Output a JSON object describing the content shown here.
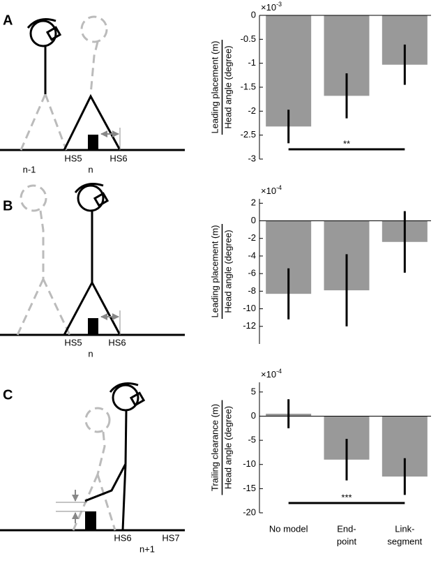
{
  "panels": [
    {
      "letter": "A",
      "labels": [
        "HS5",
        "HS6",
        "n-1",
        "n"
      ]
    },
    {
      "letter": "B",
      "labels": [
        "HS5",
        "HS6",
        "n"
      ]
    },
    {
      "letter": "C",
      "labels": [
        "HS6",
        "HS7",
        "n+1"
      ]
    }
  ],
  "chart_data": [
    {
      "type": "bar",
      "ylabel": [
        "Leading placement (m)",
        "Head angle (degree)"
      ],
      "multiplier": "×10",
      "exponent": "-3",
      "categories": [
        null,
        null,
        null
      ],
      "values": [
        -2.32,
        -1.68,
        -1.03
      ],
      "errors": [
        0.35,
        0.47,
        0.42
      ],
      "ylim": [
        -3,
        0
      ],
      "yticks": [
        0,
        -0.5,
        -1,
        -1.5,
        -2,
        -2.5,
        -3
      ],
      "color": "#999999",
      "significance_label": "**"
    },
    {
      "type": "bar",
      "ylabel": [
        "Leading placement (m)",
        "Head angle (degree)"
      ],
      "multiplier": "×10",
      "exponent": "-4",
      "categories": [
        null,
        null,
        null
      ],
      "values": [
        -8.3,
        -7.9,
        -2.4
      ],
      "errors": [
        2.9,
        4.1,
        3.5
      ],
      "ylim": [
        -14,
        2.5
      ],
      "yticks": [
        2,
        0,
        -2,
        -4,
        -6,
        -8,
        -10,
        -12
      ],
      "color": "#999999"
    },
    {
      "type": "bar",
      "ylabel": [
        "Trailing clearance (m)",
        "Head angle (degree)"
      ],
      "multiplier": "×10",
      "exponent": "-4",
      "categories": [
        [
          "No model"
        ],
        [
          "End-",
          "point"
        ],
        [
          "Link-",
          "segment"
        ]
      ],
      "values": [
        0.5,
        -9,
        -12.5
      ],
      "errors": [
        3,
        4.3,
        3.8
      ],
      "ylim": [
        -20,
        7
      ],
      "yticks": [
        5,
        0,
        -5,
        -10,
        -15,
        -20
      ],
      "color": "#999999",
      "significance_label": "***"
    }
  ]
}
